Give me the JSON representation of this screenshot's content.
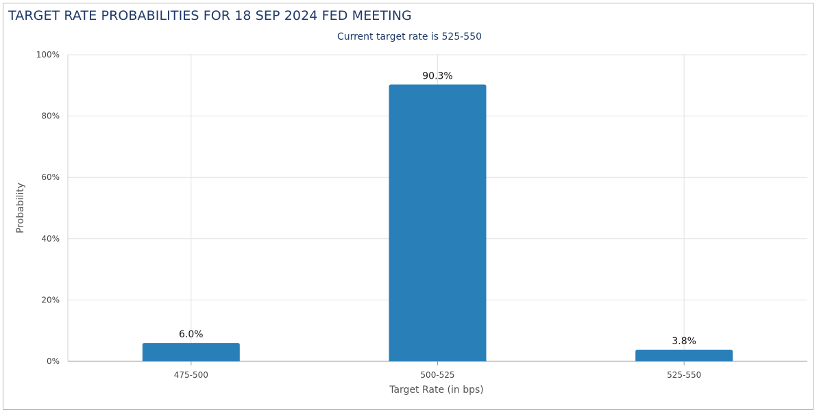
{
  "chart_data": {
    "type": "bar",
    "title": "TARGET RATE PROBABILITIES FOR 18 SEP 2024 FED MEETING",
    "subtitle": "Current target rate is 525-550",
    "xlabel": "Target Rate (in bps)",
    "ylabel": "Probability",
    "categories": [
      "475-500",
      "500-525",
      "525-550"
    ],
    "values": [
      6.0,
      90.3,
      3.8
    ],
    "data_labels": [
      "6.0%",
      "90.3%",
      "3.8%"
    ],
    "ylim": [
      0,
      100
    ],
    "yticks": [
      0,
      20,
      40,
      60,
      80,
      100
    ],
    "ytick_labels": [
      "0%",
      "20%",
      "40%",
      "60%",
      "80%",
      "100%"
    ],
    "grid": true,
    "legend": "none",
    "bar_color": "#2980b9",
    "grid_color": "#e2e2e2"
  }
}
